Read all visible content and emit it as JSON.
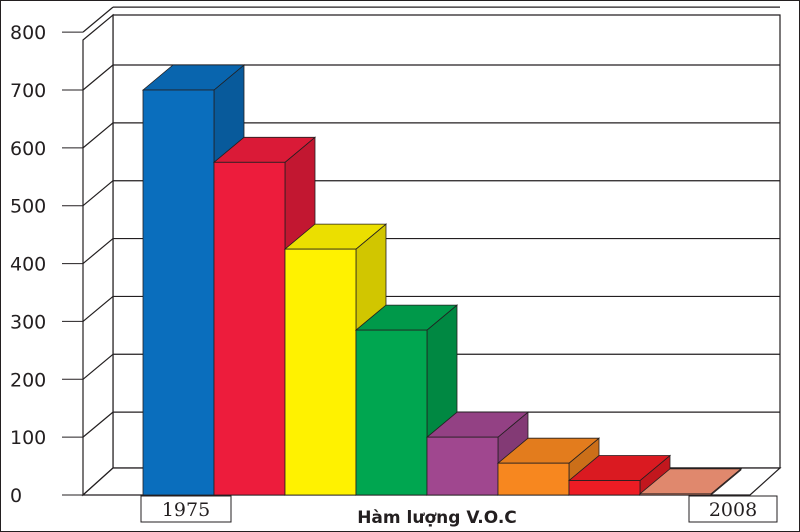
{
  "chart_data": {
    "type": "bar",
    "title": "",
    "xlabel": "Hàm lượng V.O.C",
    "ylabel": "",
    "ylim": [
      0,
      800
    ],
    "yticks": [
      0,
      100,
      200,
      300,
      400,
      500,
      600,
      700,
      800
    ],
    "x_start_label": "1975",
    "x_end_label": "2008",
    "values": [
      700,
      575,
      425,
      285,
      100,
      55,
      25,
      2
    ],
    "colors": [
      "#0a6ebd",
      "#ed1c3c",
      "#fff200",
      "#00a650",
      "#a0478f",
      "#f7871f",
      "#ed1c24",
      "#f39477"
    ],
    "grid": true,
    "legend": "none"
  }
}
